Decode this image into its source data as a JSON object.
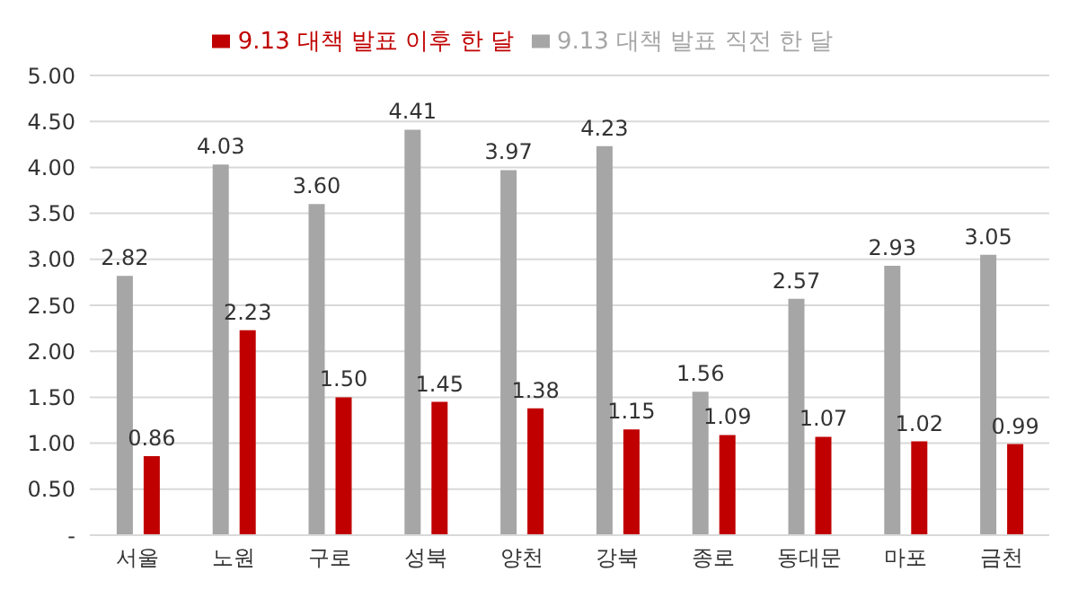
{
  "chart_data": {
    "type": "bar",
    "categories": [
      "서울",
      "노원",
      "구로",
      "성북",
      "양천",
      "강북",
      "종로",
      "동대문",
      "마포",
      "금천"
    ],
    "series": [
      {
        "name": "9.13 대책 발표 직전 한 달",
        "color": "#a6a6a6",
        "values": [
          2.82,
          4.03,
          3.6,
          4.41,
          3.97,
          4.23,
          1.56,
          2.57,
          2.93,
          3.05
        ],
        "value_labels": [
          "2.82",
          "4.03",
          "3.60",
          "4.41",
          "3.97",
          "4.23",
          "1.56",
          "2.57",
          "2.93",
          "3.05"
        ]
      },
      {
        "name": "9.13 대책 발표 이후 한 달",
        "color": "#c00000",
        "values": [
          0.86,
          2.23,
          1.5,
          1.45,
          1.38,
          1.15,
          1.09,
          1.07,
          1.02,
          0.99
        ],
        "value_labels": [
          "0.86",
          "2.23",
          "1.50",
          "1.45",
          "1.38",
          "1.15",
          "1.09",
          "1.07",
          "1.02",
          "0.99"
        ]
      }
    ],
    "ylim": [
      0,
      5
    ],
    "yticks": [
      {
        "value": 0,
        "label": "-"
      },
      {
        "value": 0.5,
        "label": "0.50"
      },
      {
        "value": 1,
        "label": "1.00"
      },
      {
        "value": 1.5,
        "label": "1.50"
      },
      {
        "value": 2,
        "label": "2.00"
      },
      {
        "value": 2.5,
        "label": "2.50"
      },
      {
        "value": 3,
        "label": "3.00"
      },
      {
        "value": 3.5,
        "label": "3.50"
      },
      {
        "value": 4,
        "label": "4.00"
      },
      {
        "value": 4.5,
        "label": "4.50"
      },
      {
        "value": 5,
        "label": "5.00"
      }
    ],
    "grid": "y",
    "legend": "top"
  }
}
